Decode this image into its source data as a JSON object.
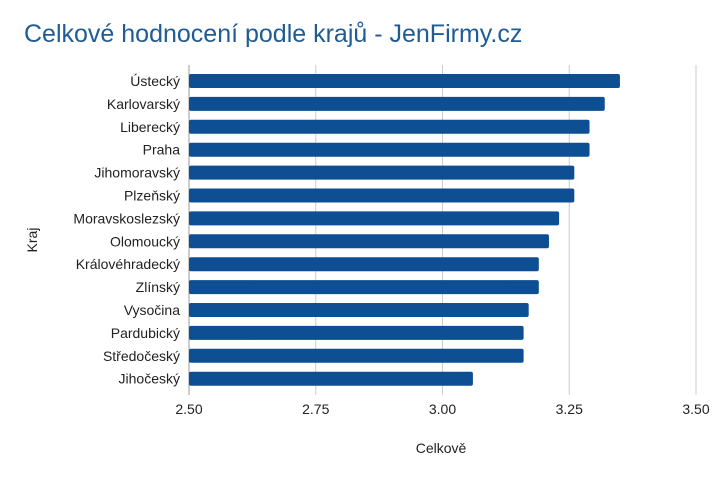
{
  "chart_data": {
    "type": "bar",
    "orientation": "horizontal",
    "title": "Celkové hodnocení podle krajů - JenFirmy.cz",
    "xlabel": "Celkově",
    "ylabel": "Kraj",
    "xlim": [
      2.5,
      3.5
    ],
    "xticks": [
      "2.50",
      "2.75",
      "3.00",
      "3.25",
      "3.50"
    ],
    "xtick_values": [
      2.5,
      2.75,
      3.0,
      3.25,
      3.5
    ],
    "grid": true,
    "color": "#0d4f92",
    "categories": [
      "Ústecký",
      "Karlovarský",
      "Liberecký",
      "Praha",
      "Jihomoravský",
      "Plzeňský",
      "Moravskoslezský",
      "Olomoucký",
      "Královéhradecký",
      "Zlínský",
      "Vysočina",
      "Pardubický",
      "Středočeský",
      "Jihočeský"
    ],
    "values": [
      3.35,
      3.32,
      3.29,
      3.29,
      3.26,
      3.26,
      3.23,
      3.21,
      3.19,
      3.19,
      3.17,
      3.16,
      3.16,
      3.06
    ]
  }
}
